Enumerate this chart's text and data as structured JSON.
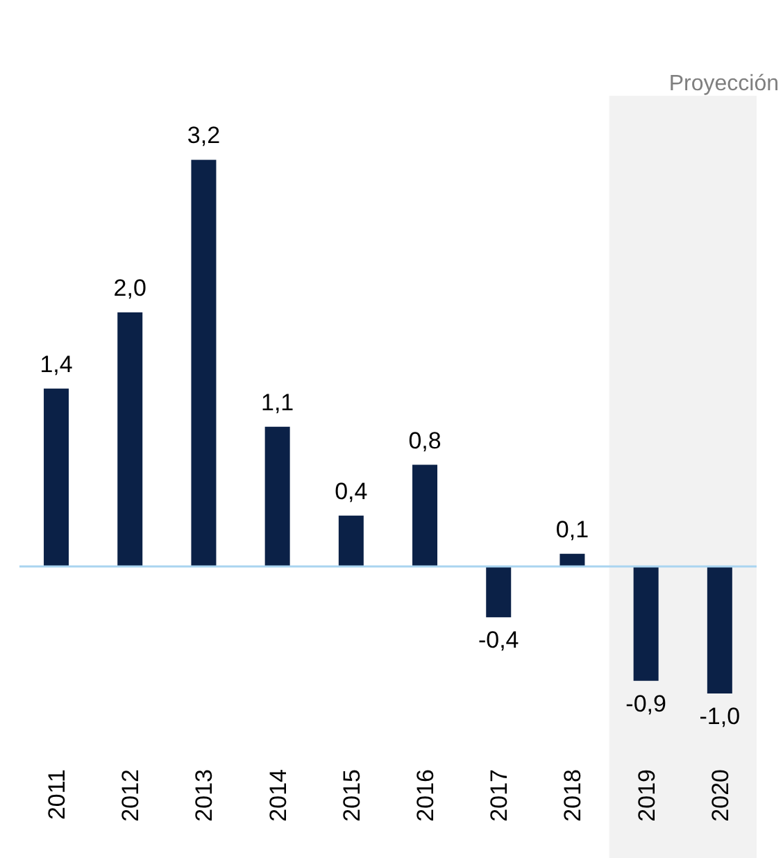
{
  "chart_data": {
    "type": "bar",
    "categories": [
      "2011",
      "2012",
      "2013",
      "2014",
      "2015",
      "2016",
      "2017",
      "2018",
      "2019",
      "2020"
    ],
    "values": [
      1.4,
      2.0,
      3.2,
      1.1,
      0.4,
      0.8,
      -0.4,
      0.1,
      -0.9,
      -1.0
    ],
    "value_labels": [
      "1,4",
      "2,0",
      "3,2",
      "1,1",
      "0,4",
      "0,8",
      "-0,4",
      "0,1",
      "-0,9",
      "-1,0"
    ],
    "color": "#0b2147",
    "bands": [
      {
        "axis": "x",
        "from": "2019",
        "to": "2020",
        "label": "Proyección",
        "color": "#f2f2f2"
      }
    ],
    "ref_lines": [
      {
        "axis": "y",
        "value": 0,
        "color": "#a9d4f0"
      }
    ]
  }
}
